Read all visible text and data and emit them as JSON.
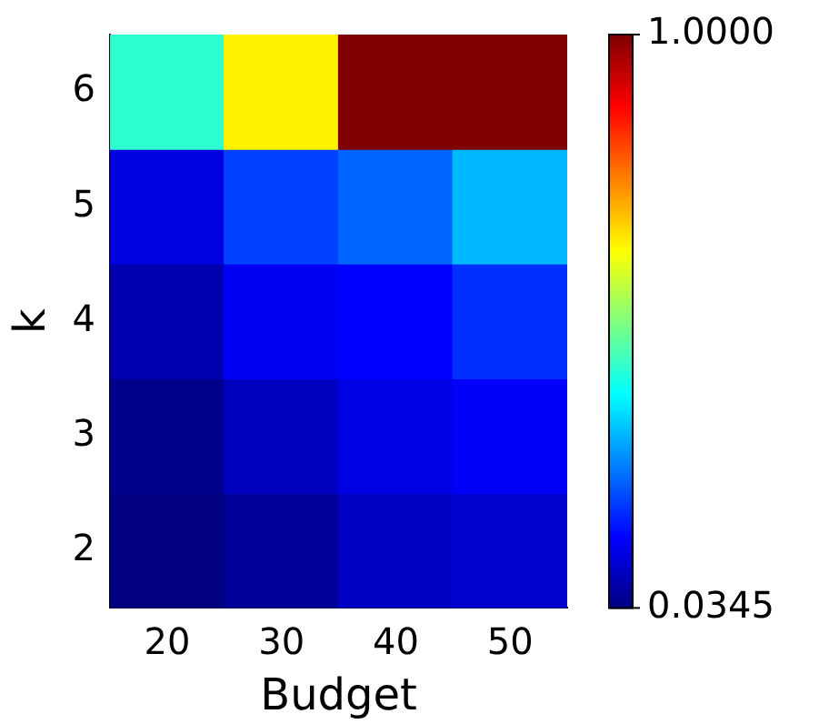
{
  "chart_data": {
    "type": "heatmap",
    "xlabel": "Budget",
    "ylabel": "k",
    "categories": [
      "20",
      "30",
      "40",
      "50"
    ],
    "y_categories": [
      "6",
      "5",
      "4",
      "3",
      "2"
    ],
    "cells": [
      [
        0.44,
        0.65,
        1.0,
        1.0
      ],
      [
        0.126,
        0.217,
        0.25,
        0.33
      ],
      [
        0.08,
        0.145,
        0.155,
        0.2
      ],
      [
        0.044,
        0.095,
        0.13,
        0.15
      ],
      [
        0.0345,
        0.058,
        0.1,
        0.11
      ]
    ],
    "clim": [
      0.0345,
      1.0
    ],
    "cticks": [
      {
        "value": 0.0345,
        "label": "0.0345"
      },
      {
        "value": 1.0,
        "label": "1.0000"
      }
    ]
  }
}
